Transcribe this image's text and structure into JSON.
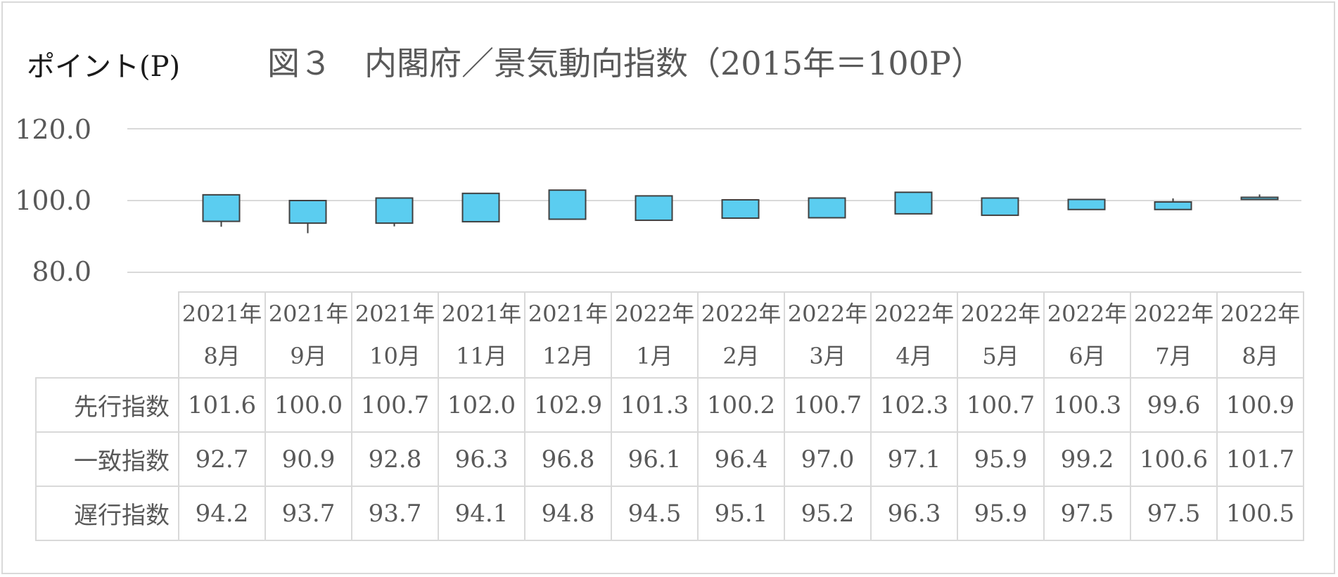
{
  "unit_label": "ポイント(P)",
  "title": "図３　内閣府／景気動向指数（2015年＝100P）",
  "colors": {
    "box_fill": "#5bcdf0",
    "box_stroke": "#404040",
    "grid": "#d9d9d9",
    "text": "#595959"
  },
  "chart_data": {
    "type": "bar",
    "title": "図３　内閣府／景気動向指数（2015年＝100P）",
    "ylabel": "ポイント(P)",
    "ylim": [
      80,
      120
    ],
    "yticks": [
      "120.0",
      "100.0",
      "80.0"
    ],
    "grid": true,
    "categories": [
      {
        "year": "2021年",
        "month": "8月"
      },
      {
        "year": "2021年",
        "month": "9月"
      },
      {
        "year": "2021年",
        "month": "10月"
      },
      {
        "year": "2021年",
        "month": "11月"
      },
      {
        "year": "2021年",
        "month": "12月"
      },
      {
        "year": "2022年",
        "month": "1月"
      },
      {
        "year": "2022年",
        "month": "2月"
      },
      {
        "year": "2022年",
        "month": "3月"
      },
      {
        "year": "2022年",
        "month": "4月"
      },
      {
        "year": "2022年",
        "month": "5月"
      },
      {
        "year": "2022年",
        "month": "6月"
      },
      {
        "year": "2022年",
        "month": "7月"
      },
      {
        "year": "2022年",
        "month": "8月"
      }
    ],
    "series": [
      {
        "name": "先行指数",
        "values": [
          "101.6",
          "100.0",
          "100.7",
          "102.0",
          "102.9",
          "101.3",
          "100.2",
          "100.7",
          "102.3",
          "100.7",
          "100.3",
          "99.6",
          "100.9"
        ]
      },
      {
        "name": "一致指数",
        "values": [
          "92.7",
          "90.9",
          "92.8",
          "96.3",
          "96.8",
          "96.1",
          "96.4",
          "97.0",
          "97.1",
          "95.9",
          "99.2",
          "100.6",
          "101.7"
        ]
      },
      {
        "name": "遅行指数",
        "values": [
          "94.2",
          "93.7",
          "93.7",
          "94.1",
          "94.8",
          "94.5",
          "95.1",
          "95.2",
          "96.3",
          "95.9",
          "97.5",
          "97.5",
          "100.5"
        ]
      }
    ]
  }
}
